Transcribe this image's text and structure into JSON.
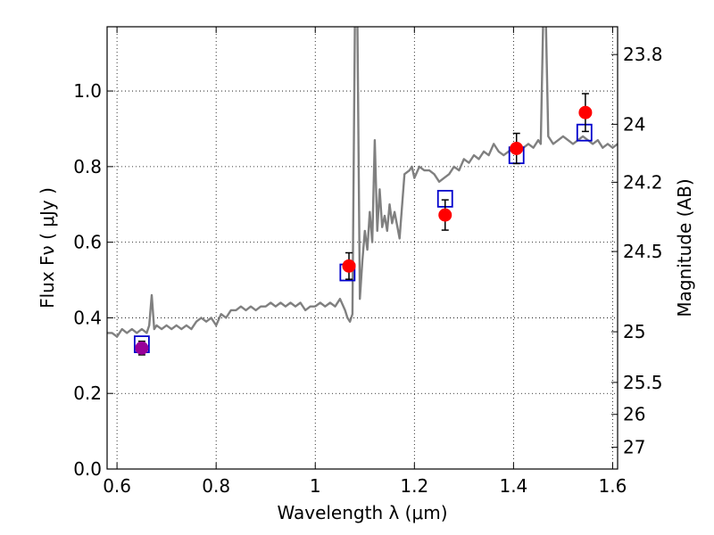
{
  "chart_data": {
    "type": "scatter",
    "xlabel": "Wavelength  λ (μm)",
    "ylabel": "Flux  Fν  ( μJy )",
    "y2label": "Magnitude (AB)",
    "xlim": [
      0.58,
      1.61
    ],
    "ylim": [
      0.0,
      1.17
    ],
    "grid": true,
    "x_ticks": [
      0.6,
      0.8,
      1.0,
      1.2,
      1.4,
      1.6
    ],
    "x_tick_labels": [
      "0.6",
      "0.8",
      "1",
      "1.2",
      "1.4",
      "1.6"
    ],
    "y_ticks": [
      0.0,
      0.2,
      0.4,
      0.6,
      0.8,
      1.0
    ],
    "y_tick_labels": [
      "0.0",
      "0.2",
      "0.4",
      "0.6",
      "0.8",
      "1.0"
    ],
    "y2_ticks": [
      {
        "label": "23.8",
        "flux": 1.0965
      },
      {
        "label": "24",
        "flux": 0.912
      },
      {
        "label": "24.2",
        "flux": 0.7586
      },
      {
        "label": "24.5",
        "flux": 0.5754
      },
      {
        "label": "25",
        "flux": 0.3631
      },
      {
        "label": "25.5",
        "flux": 0.2291
      },
      {
        "label": "26",
        "flux": 0.1445
      },
      {
        "label": "27",
        "flux": 0.0575
      }
    ],
    "colors": {
      "spectrum": "#808080",
      "observed": "#ff0000",
      "model": "#0000cc",
      "errorbar": "#000000",
      "overlap": "#990099"
    },
    "series": [
      {
        "kind": "line",
        "color": "#808080",
        "x": [
          0.58,
          0.59,
          0.6,
          0.61,
          0.62,
          0.63,
          0.64,
          0.65,
          0.66,
          0.665,
          0.67,
          0.675,
          0.68,
          0.69,
          0.7,
          0.71,
          0.72,
          0.73,
          0.74,
          0.75,
          0.76,
          0.77,
          0.78,
          0.79,
          0.8,
          0.81,
          0.82,
          0.83,
          0.84,
          0.85,
          0.86,
          0.87,
          0.88,
          0.89,
          0.9,
          0.91,
          0.92,
          0.93,
          0.94,
          0.95,
          0.96,
          0.97,
          0.98,
          0.99,
          1.0,
          1.01,
          1.02,
          1.03,
          1.04,
          1.05,
          1.06,
          1.065,
          1.07,
          1.075,
          1.08,
          1.085,
          1.09,
          1.095,
          1.1,
          1.105,
          1.11,
          1.115,
          1.12,
          1.125,
          1.13,
          1.135,
          1.14,
          1.145,
          1.15,
          1.155,
          1.16,
          1.17,
          1.18,
          1.19,
          1.195,
          1.2,
          1.21,
          1.22,
          1.23,
          1.24,
          1.25,
          1.26,
          1.27,
          1.28,
          1.29,
          1.3,
          1.31,
          1.32,
          1.33,
          1.34,
          1.35,
          1.36,
          1.37,
          1.38,
          1.39,
          1.4,
          1.41,
          1.42,
          1.43,
          1.44,
          1.45,
          1.455,
          1.46,
          1.465,
          1.47,
          1.48,
          1.49,
          1.5,
          1.51,
          1.52,
          1.53,
          1.54,
          1.55,
          1.56,
          1.57,
          1.58,
          1.59,
          1.6,
          1.61
        ],
        "y": [
          0.36,
          0.36,
          0.35,
          0.37,
          0.36,
          0.37,
          0.36,
          0.37,
          0.36,
          0.38,
          0.46,
          0.37,
          0.38,
          0.37,
          0.38,
          0.37,
          0.38,
          0.37,
          0.38,
          0.37,
          0.39,
          0.4,
          0.39,
          0.4,
          0.38,
          0.41,
          0.4,
          0.42,
          0.42,
          0.43,
          0.42,
          0.43,
          0.42,
          0.43,
          0.43,
          0.44,
          0.43,
          0.44,
          0.43,
          0.44,
          0.43,
          0.44,
          0.42,
          0.43,
          0.43,
          0.44,
          0.43,
          0.44,
          0.43,
          0.45,
          0.42,
          0.4,
          0.39,
          0.41,
          1.2,
          1.2,
          0.45,
          0.55,
          0.63,
          0.58,
          0.68,
          0.6,
          0.87,
          0.63,
          0.74,
          0.64,
          0.67,
          0.63,
          0.7,
          0.65,
          0.68,
          0.61,
          0.78,
          0.79,
          0.8,
          0.77,
          0.8,
          0.79,
          0.79,
          0.78,
          0.76,
          0.77,
          0.78,
          0.8,
          0.79,
          0.82,
          0.81,
          0.83,
          0.82,
          0.84,
          0.83,
          0.86,
          0.84,
          0.83,
          0.84,
          0.85,
          0.84,
          0.85,
          0.86,
          0.85,
          0.87,
          0.86,
          1.2,
          1.2,
          0.88,
          0.86,
          0.87,
          0.88,
          0.87,
          0.86,
          0.87,
          0.88,
          0.87,
          0.86,
          0.87,
          0.85,
          0.86,
          0.85,
          0.86
        ]
      },
      {
        "kind": "model",
        "marker": "open-square",
        "color": "#0000cc",
        "points": [
          {
            "x": 0.65,
            "y": 0.33
          },
          {
            "x": 1.065,
            "y": 0.52
          },
          {
            "x": 1.262,
            "y": 0.715
          },
          {
            "x": 1.406,
            "y": 0.83
          },
          {
            "x": 1.543,
            "y": 0.89
          }
        ]
      },
      {
        "kind": "observed",
        "marker": "filled-circle",
        "color": "#ff0000",
        "points": [
          {
            "x": 0.65,
            "y": 0.32,
            "err": 0.018
          },
          {
            "x": 1.068,
            "y": 0.537,
            "err": 0.035
          },
          {
            "x": 1.262,
            "y": 0.672,
            "err": 0.04
          },
          {
            "x": 1.406,
            "y": 0.848,
            "err": 0.04
          },
          {
            "x": 1.545,
            "y": 0.943,
            "err": 0.05
          }
        ]
      }
    ]
  }
}
